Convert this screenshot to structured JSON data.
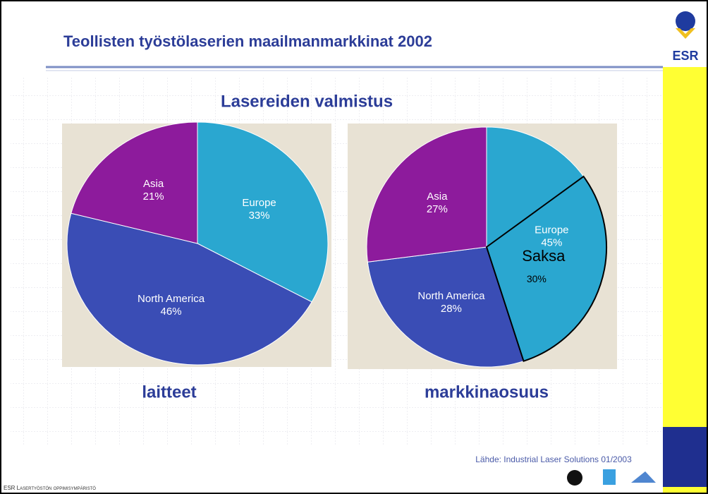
{
  "slide": {
    "title": "Teollisten työstölaserien maailmanmarkkinat 2002",
    "subtitle": "Lasereiden valmistus",
    "source": "Lähde: Industrial Laser Solutions 01/2003",
    "footer": "ESR Lasertyöstön oppimisympäristö",
    "logo": "ESR"
  },
  "chart_data": [
    {
      "type": "pie",
      "title": "laitteet",
      "categories": [
        "Europe",
        "North America",
        "Asia"
      ],
      "values": [
        33,
        46,
        21
      ],
      "value_labels": [
        "33%",
        "46%",
        "21%"
      ],
      "colors": [
        "#2aa7d0",
        "#3a4db5",
        "#8d1b9c"
      ]
    },
    {
      "type": "pie",
      "title": "markkinaosuus",
      "categories": [
        "Europe",
        "North America",
        "Asia"
      ],
      "values": [
        45,
        28,
        27
      ],
      "value_labels": [
        "45%",
        "28%",
        "27%"
      ],
      "colors": [
        "#2aa7d0",
        "#3a4db5",
        "#8d1b9c"
      ],
      "annotations": [
        {
          "text": "Saksa",
          "value": 30,
          "label": "30%"
        }
      ]
    }
  ]
}
